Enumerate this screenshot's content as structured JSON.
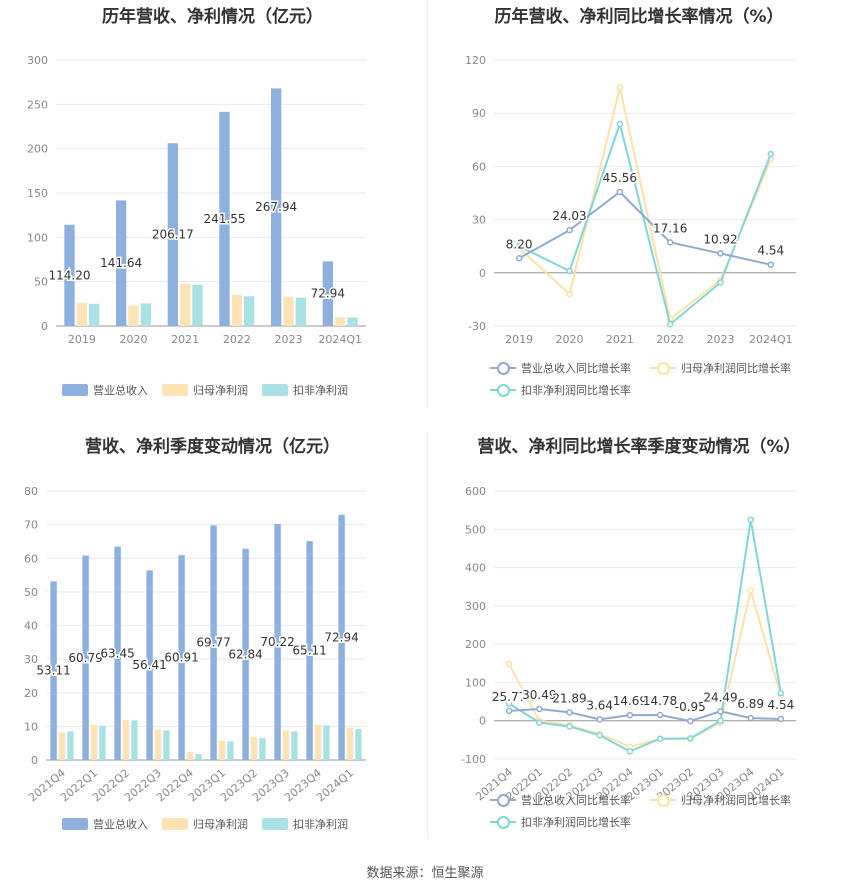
{
  "colors": {
    "revenue": "#8eb0de",
    "netprofit": "#fde3b5",
    "deducted": "#a9e1e4",
    "revenue_line": "#8eaad1",
    "netprofit_line": "#fde1a8",
    "deducted_line": "#80d6d8",
    "grid": "#e6e9f0",
    "axis_text": "#888888",
    "label_text": "#333333"
  },
  "footer": "数据来源：恒生聚源",
  "legend_bar": [
    "营业总收入",
    "归母净利润",
    "扣非净利润"
  ],
  "legend_line": [
    "营业总收入同比增长率",
    "归母净利润同比增长率",
    "扣非净利润同比增长率"
  ],
  "chart_data": [
    {
      "id": "annual_bar",
      "type": "bar",
      "title": "历年营收、净利情况（亿元）",
      "categories": [
        "2019",
        "2020",
        "2021",
        "2022",
        "2023",
        "2024Q1"
      ],
      "ylim": [
        0,
        300
      ],
      "yticks": [
        0,
        50,
        100,
        150,
        200,
        250,
        300
      ],
      "series": [
        {
          "name": "营业总收入",
          "values": [
            114.2,
            141.64,
            206.17,
            241.55,
            267.94,
            72.94
          ],
          "labels": [
            "114.20",
            "141.64",
            "206.17",
            "241.55",
            "267.94",
            "72.94"
          ]
        },
        {
          "name": "归母净利润",
          "values": [
            26.0,
            23.0,
            47.5,
            35.0,
            33.0,
            10.0
          ]
        },
        {
          "name": "扣非净利润",
          "values": [
            25.0,
            25.5,
            46.5,
            33.5,
            32.0,
            9.5
          ]
        }
      ],
      "grid": true,
      "legend": "bottom"
    },
    {
      "id": "annual_growth",
      "type": "line",
      "title": "历年营收、净利同比增长率情况（%）",
      "categories": [
        "2019",
        "2020",
        "2021",
        "2022",
        "2023",
        "2024Q1"
      ],
      "ylim": [
        -30,
        120
      ],
      "yticks": [
        -30,
        0,
        30,
        60,
        90,
        120
      ],
      "series": [
        {
          "name": "营业总收入同比增长率",
          "values": [
            8.2,
            24.03,
            45.56,
            17.16,
            10.92,
            4.54
          ],
          "labels": [
            "8.20",
            "24.03",
            "45.56",
            "17.16",
            "10.92",
            "4.54"
          ]
        },
        {
          "name": "归母净利润同比增长率",
          "values": [
            14.0,
            -12.0,
            104.5,
            -26.0,
            -4.0,
            64.0
          ]
        },
        {
          "name": "扣非净利润同比增长率",
          "values": [
            15.0,
            1.0,
            84.0,
            -29.0,
            -5.5,
            67.0
          ]
        }
      ],
      "grid": true,
      "legend": "bottom"
    },
    {
      "id": "quarterly_bar",
      "type": "bar",
      "title": "营收、净利季度变动情况（亿元）",
      "categories": [
        "2021Q4",
        "2022Q1",
        "2022Q2",
        "2022Q3",
        "2022Q4",
        "2023Q1",
        "2023Q2",
        "2023Q3",
        "2023Q4",
        "2024Q1"
      ],
      "ylim": [
        0,
        80
      ],
      "yticks": [
        0,
        10,
        20,
        30,
        40,
        50,
        60,
        70,
        80
      ],
      "series": [
        {
          "name": "营业总收入",
          "values": [
            53.11,
            60.79,
            63.45,
            56.41,
            60.91,
            69.77,
            62.84,
            70.22,
            65.11,
            72.94
          ],
          "labels": [
            "53.11",
            "60.79",
            "63.45",
            "56.41",
            "60.91",
            "69.77",
            "62.84",
            "70.22",
            "65.11",
            "72.94"
          ]
        },
        {
          "name": "归母净利润",
          "values": [
            8.2,
            10.5,
            12.0,
            9.0,
            2.5,
            5.8,
            6.8,
            8.8,
            10.5,
            9.5
          ]
        },
        {
          "name": "扣非净利润",
          "values": [
            8.5,
            10.2,
            11.8,
            8.8,
            1.8,
            5.5,
            6.5,
            8.5,
            10.3,
            9.2
          ]
        }
      ],
      "grid": true,
      "legend": "bottom"
    },
    {
      "id": "quarterly_growth",
      "type": "line",
      "title": "营收、净利同比增长率季度变动情况（%）",
      "categories": [
        "2021Q4",
        "2022Q1",
        "2022Q2",
        "2022Q3",
        "2022Q4",
        "2023Q1",
        "2023Q2",
        "2023Q3",
        "2023Q4",
        "2024Q1"
      ],
      "ylim": [
        -100,
        600
      ],
      "yticks": [
        -100,
        0,
        100,
        200,
        300,
        400,
        500,
        600
      ],
      "series": [
        {
          "name": "营业总收入同比增长率",
          "values": [
            25.77,
            30.49,
            21.89,
            3.64,
            14.69,
            14.78,
            -0.95,
            24.49,
            6.89,
            4.54
          ],
          "labels": [
            "25.77",
            "30.49",
            "21.89",
            "3.64",
            "14.69",
            "14.78",
            "-0.95",
            "24.49",
            "6.89",
            "4.54"
          ]
        },
        {
          "name": "归母净利润同比增长率",
          "values": [
            148,
            0,
            -12,
            -35,
            -68,
            -48,
            -47,
            -5,
            340,
            65
          ]
        },
        {
          "name": "扣非净利润同比增长率",
          "values": [
            45,
            -5,
            -15,
            -38,
            -80,
            -47,
            -46,
            0,
            525,
            72
          ]
        }
      ],
      "grid": true,
      "legend": "bottom"
    }
  ]
}
